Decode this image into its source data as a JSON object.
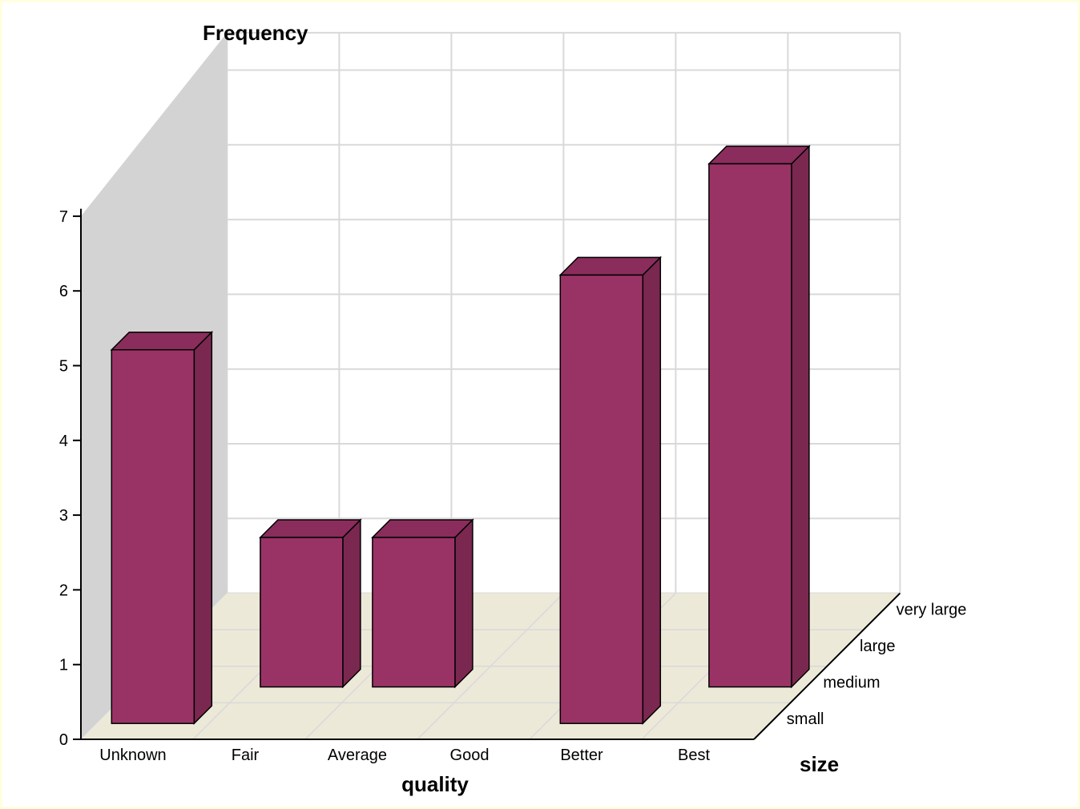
{
  "colors": {
    "bar_front": "#993366",
    "bar_side": "#7a2850",
    "bar_top": "#8a2d5c",
    "floor": "#ece9d8",
    "left_wall": "#d3d3d3",
    "grid": "#d9d9d9",
    "outer_background": "#fffee0"
  },
  "chart_data": {
    "type": "bar",
    "subtype": "3d-bar",
    "ylabel": "Frequency",
    "xlabel": "quality",
    "zlabel": "size",
    "ylim": [
      0,
      7
    ],
    "yticks": [
      0,
      1,
      2,
      3,
      4,
      5,
      6,
      7
    ],
    "categories": [
      "Unknown",
      "Fair",
      "Average",
      "Good",
      "Better",
      "Best"
    ],
    "depth_categories": [
      "small",
      "medium",
      "large",
      "very large"
    ],
    "grid": true,
    "bars": [
      {
        "quality": "Unknown",
        "size": "small",
        "value": 5
      },
      {
        "quality": "Fair",
        "size": "medium",
        "value": 2
      },
      {
        "quality": "Average",
        "size": "medium",
        "value": 2
      },
      {
        "quality": "Better",
        "size": "small",
        "value": 6
      },
      {
        "quality": "Best",
        "size": "medium",
        "value": 7
      }
    ]
  }
}
